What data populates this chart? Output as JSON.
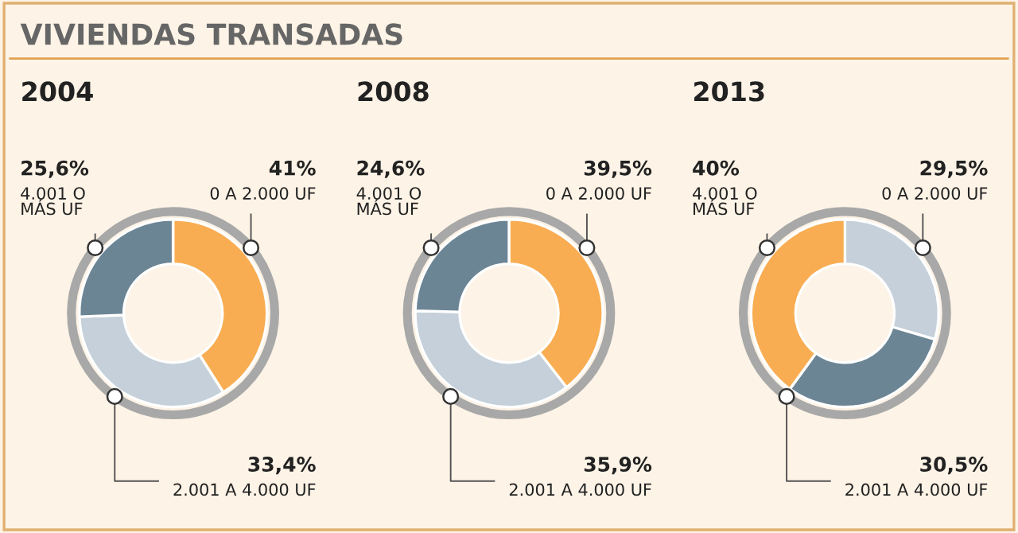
{
  "chart_data": [
    {
      "type": "donut",
      "title": "2004",
      "annotations": [
        "VIVIENDAS TRANSADAS"
      ],
      "categories": [
        "0 A 2.000 UF",
        "2.001 A 4.000 UF",
        "4.001 O\nMÁS UF"
      ],
      "values": [
        41,
        33.4,
        25.6
      ],
      "colors": [
        "#f9ad52",
        "#c5d0da",
        "#6c8595"
      ],
      "value_labels": [
        "41%",
        "33,4%",
        "25,6%"
      ]
    },
    {
      "type": "donut",
      "title": "2008",
      "categories": [
        "0 A 2.000 UF",
        "2.001 A 4.000 UF",
        "4.001 O\nMÁS UF"
      ],
      "values": [
        39.5,
        35.9,
        24.6
      ],
      "colors": [
        "#f9ad52",
        "#c5d0da",
        "#6c8595"
      ],
      "value_labels": [
        "39,5%",
        "35,9%",
        "24,6%"
      ]
    },
    {
      "type": "donut",
      "title": "2013",
      "categories": [
        "0 A 2.000 UF",
        "2.001 A 4.000 UF",
        "4.001 O\nMÁS UF"
      ],
      "values": [
        29.5,
        30.5,
        40
      ],
      "colors": [
        "#c5d0da",
        "#6c8595",
        "#f9ad52"
      ],
      "value_labels": [
        "29,5%",
        "30,5%",
        "40%"
      ]
    }
  ]
}
